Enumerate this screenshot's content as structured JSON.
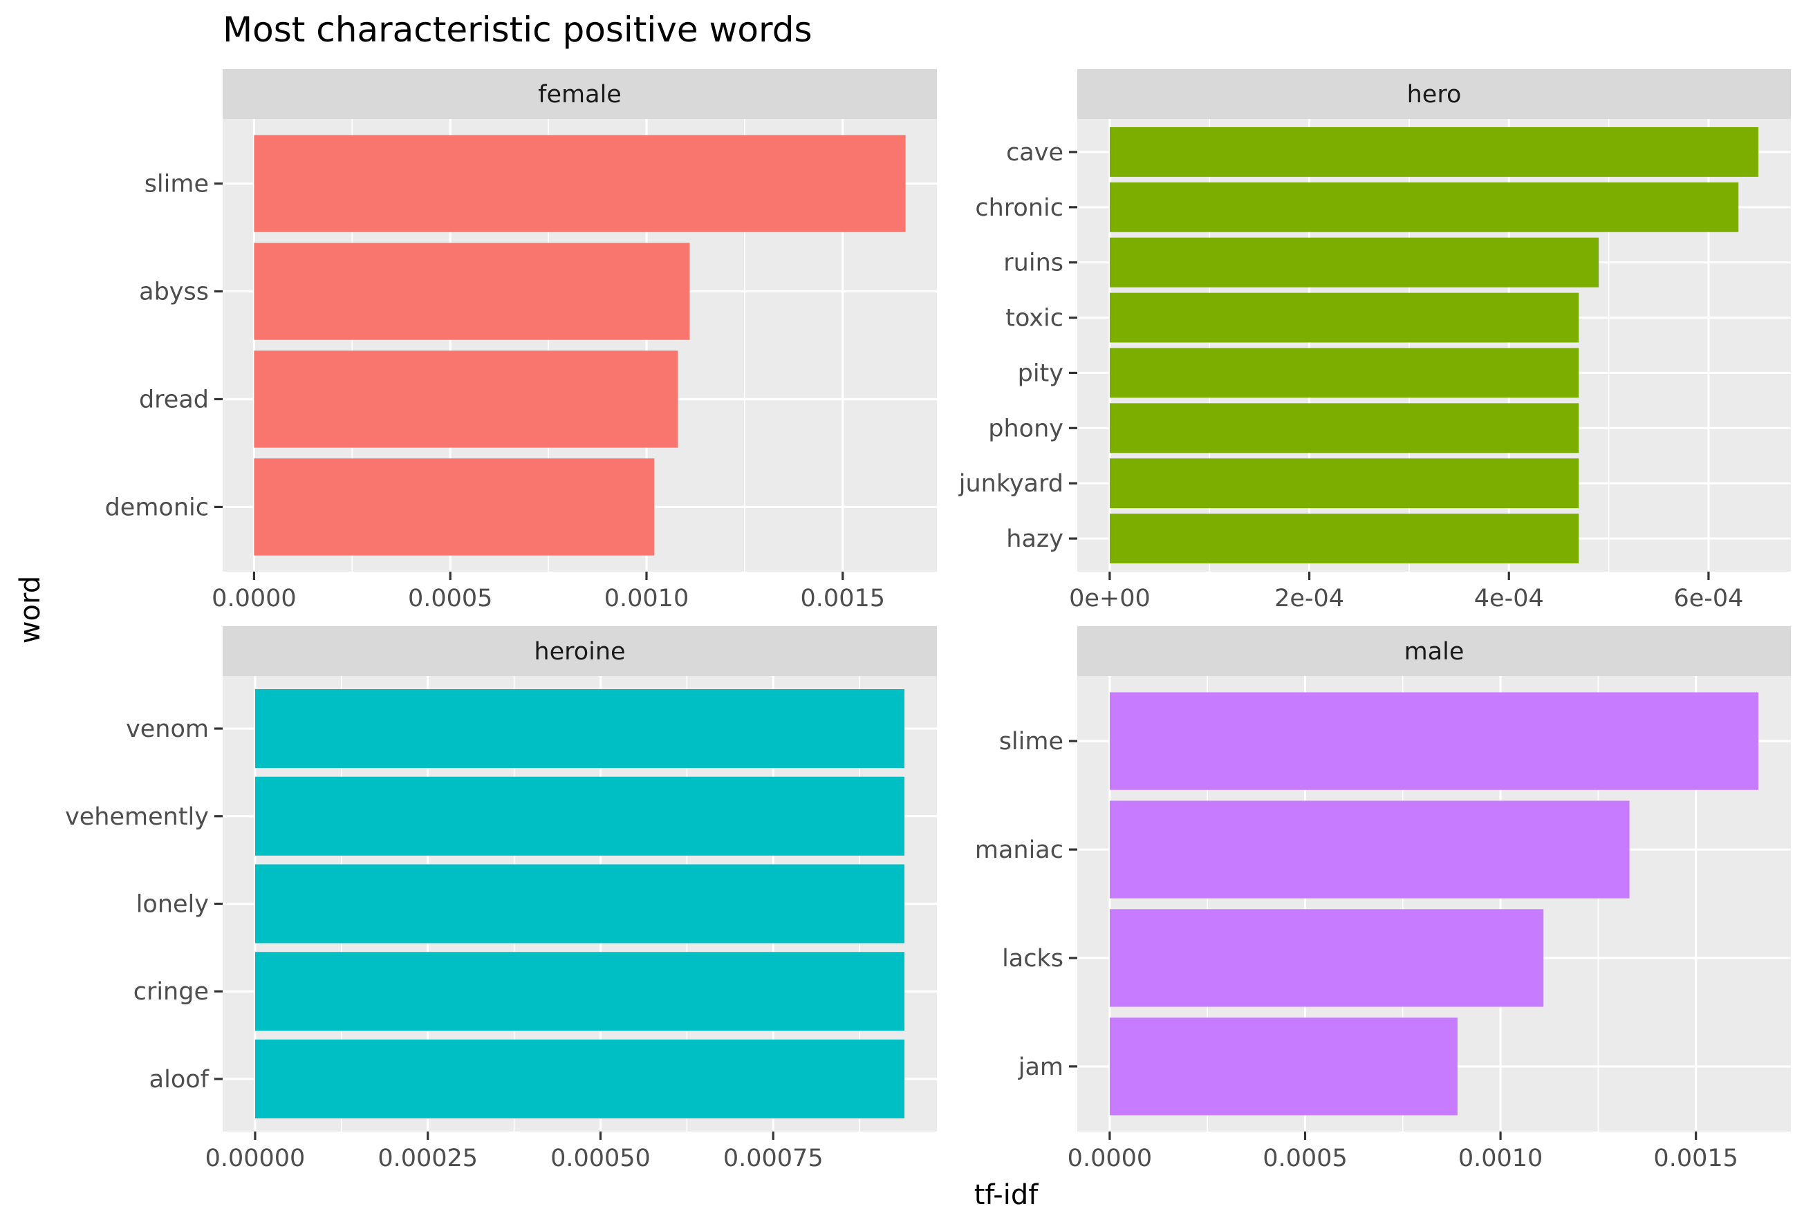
{
  "chart_data": {
    "type": "bar",
    "orientation": "horizontal",
    "title": "Most characteristic positive words",
    "xlabel": "tf-idf",
    "ylabel": "word",
    "grid": true,
    "legend": "none",
    "facet_scales": "free",
    "panels": [
      {
        "name": "female",
        "color": "#F8766D",
        "categories": [
          "slime",
          "abyss",
          "dread",
          "demonic"
        ],
        "values": [
          0.00166,
          0.00111,
          0.00108,
          0.00102
        ],
        "xlim": [
          -8e-05,
          0.00174
        ],
        "xticks": [
          0,
          0.0005,
          0.001,
          0.0015
        ],
        "xtick_labels": [
          "0.0000",
          "0.0005",
          "0.0010",
          "0.0015"
        ]
      },
      {
        "name": "hero",
        "color": "#7CAE00",
        "categories": [
          "cave",
          "chronic",
          "ruins",
          "toxic",
          "pity",
          "phony",
          "junkyard",
          "hazy"
        ],
        "values": [
          0.00065,
          0.00063,
          0.00049,
          0.00047,
          0.00047,
          0.00047,
          0.00047,
          0.00047
        ],
        "xlim": [
          -3.25e-05,
          0.0006825
        ],
        "xticks": [
          0,
          0.0002,
          0.0004,
          0.0006
        ],
        "xtick_labels": [
          "0e+00",
          "2e-04",
          "4e-04",
          "6e-04"
        ]
      },
      {
        "name": "heroine",
        "color": "#00BFC4",
        "categories": [
          "venom",
          "vehemently",
          "lonely",
          "cringe",
          "aloof"
        ],
        "values": [
          0.00094,
          0.00094,
          0.00094,
          0.00094,
          0.00094
        ],
        "xlim": [
          -4.7e-05,
          0.000987
        ],
        "xticks": [
          0,
          0.00025,
          0.0005,
          0.00075
        ],
        "xtick_labels": [
          "0.00000",
          "0.00025",
          "0.00050",
          "0.00075"
        ]
      },
      {
        "name": "male",
        "color": "#C77CFF",
        "categories": [
          "slime",
          "maniac",
          "lacks",
          "jam"
        ],
        "values": [
          0.00166,
          0.00133,
          0.00111,
          0.00089
        ],
        "xlim": [
          -8.3e-05,
          0.001743
        ],
        "xticks": [
          0,
          0.0005,
          0.001,
          0.0015
        ],
        "xtick_labels": [
          "0.0000",
          "0.0005",
          "0.0010",
          "0.0015"
        ]
      }
    ]
  }
}
